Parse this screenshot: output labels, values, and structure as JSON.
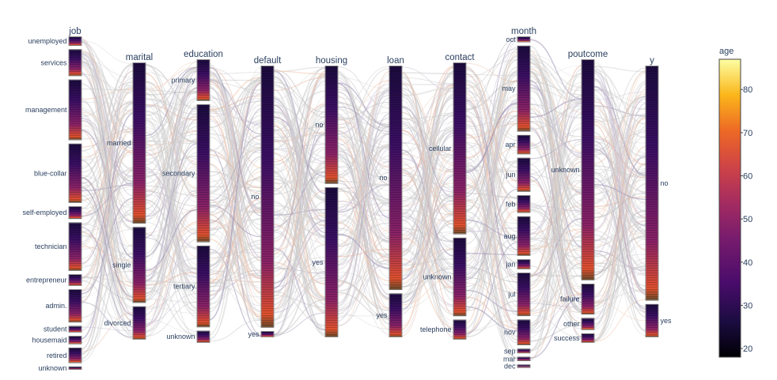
{
  "chart_data": {
    "type": "parallel_categories",
    "color_variable": "age",
    "colorbar": {
      "title": "age",
      "min": 18,
      "max": 87,
      "ticks": [
        20,
        30,
        40,
        50,
        60,
        70,
        80
      ],
      "colorscale": [
        "#0d0887",
        "#000004",
        "#320a5e",
        "#781c6d",
        "#bc3754",
        "#ed6925",
        "#fbb61a",
        "#fcffa4"
      ]
    },
    "dimensions": [
      {
        "name": "job",
        "title": "job",
        "categories": [
          {
            "label": "unemployed",
            "share": 0.029
          },
          {
            "label": "services",
            "share": 0.092
          },
          {
            "label": "management",
            "share": 0.214
          },
          {
            "label": "blue-collar",
            "share": 0.209
          },
          {
            "label": "self-employed",
            "share": 0.041
          },
          {
            "label": "technician",
            "share": 0.17
          },
          {
            "label": "entrepreneur",
            "share": 0.037
          },
          {
            "label": "admin.",
            "share": 0.115
          },
          {
            "label": "student",
            "share": 0.019
          },
          {
            "label": "housemaid",
            "share": 0.025
          },
          {
            "label": "retired",
            "share": 0.051
          },
          {
            "label": "unknown",
            "share": 0.007
          }
        ]
      },
      {
        "name": "marital",
        "title": "marital",
        "categories": [
          {
            "label": "married",
            "share": 0.6
          },
          {
            "label": "single",
            "share": 0.28
          },
          {
            "label": "divorced",
            "share": 0.12
          }
        ]
      },
      {
        "name": "education",
        "title": "education",
        "categories": [
          {
            "label": "primary",
            "share": 0.15
          },
          {
            "label": "secondary",
            "share": 0.51
          },
          {
            "label": "tertiary",
            "share": 0.3
          },
          {
            "label": "unknown",
            "share": 0.04
          }
        ]
      },
      {
        "name": "default",
        "title": "default",
        "categories": [
          {
            "label": "no",
            "share": 0.982
          },
          {
            "label": "yes",
            "share": 0.018
          }
        ]
      },
      {
        "name": "housing",
        "title": "housing",
        "categories": [
          {
            "label": "no",
            "share": 0.44
          },
          {
            "label": "yes",
            "share": 0.56
          }
        ]
      },
      {
        "name": "loan",
        "title": "loan",
        "categories": [
          {
            "label": "no",
            "share": 0.84
          },
          {
            "label": "yes",
            "share": 0.16
          }
        ]
      },
      {
        "name": "contact",
        "title": "contact",
        "categories": [
          {
            "label": "cellular",
            "share": 0.64
          },
          {
            "label": "unknown",
            "share": 0.29
          },
          {
            "label": "telephone",
            "share": 0.07
          }
        ]
      },
      {
        "name": "month",
        "title": "month",
        "categories": [
          {
            "label": "oct",
            "share": 0.016
          },
          {
            "label": "may",
            "share": 0.305
          },
          {
            "label": "apr",
            "share": 0.065
          },
          {
            "label": "jun",
            "share": 0.118
          },
          {
            "label": "feb",
            "share": 0.059
          },
          {
            "label": "aug",
            "share": 0.138
          },
          {
            "label": "jan",
            "share": 0.031
          },
          {
            "label": "jul",
            "share": 0.152
          },
          {
            "label": "nov",
            "share": 0.088
          },
          {
            "label": "sep",
            "share": 0.012
          },
          {
            "label": "mar",
            "share": 0.011
          },
          {
            "label": "dec",
            "share": 0.005
          }
        ]
      },
      {
        "name": "poutcome",
        "title": "poutcome",
        "categories": [
          {
            "label": "unknown",
            "share": 0.82
          },
          {
            "label": "failure",
            "share": 0.11
          },
          {
            "label": "other",
            "share": 0.04
          },
          {
            "label": "success",
            "share": 0.03
          }
        ]
      },
      {
        "name": "y",
        "title": "y",
        "categories": [
          {
            "label": "no",
            "share": 0.88
          },
          {
            "label": "yes",
            "share": 0.12
          }
        ]
      }
    ]
  }
}
